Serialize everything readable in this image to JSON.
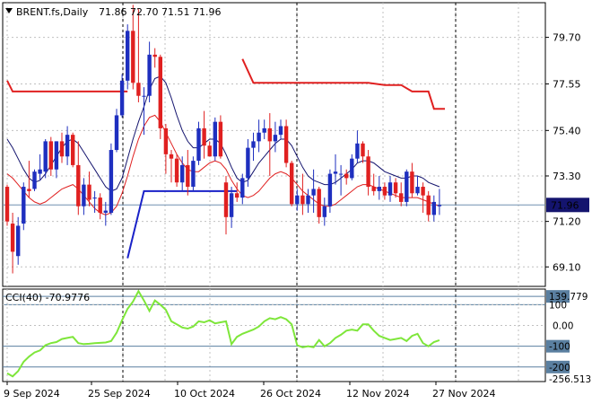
{
  "header": {
    "symbol": "BRENT.fs,Daily",
    "ohlc": "71.86 72.70 71.51 71.96"
  },
  "colors": {
    "up": "#1e2fbf",
    "down": "#e02020",
    "ma_dark": "#14146e",
    "ma_red": "#e02020",
    "sar_red": "#e02020",
    "sar_blue": "#1a22c8",
    "cci": "#7ee63a",
    "level": "#5a7fa0",
    "price_box": "#14146e"
  },
  "chart_data": [
    {
      "type": "candlestick",
      "title": "BRENT.fs,Daily",
      "ylim": [
        68.2,
        81.3
      ],
      "y_ticks": [
        "79.70",
        "77.55",
        "75.40",
        "73.30",
        "71.20",
        "69.10"
      ],
      "current_price": "71.96",
      "x_tick_labels": [
        "9 Sep 2024",
        "25 Sep 2024",
        "10 Oct 2024",
        "26 Oct 2024",
        "12 Nov 2024",
        "27 Nov 2024"
      ],
      "candles": [
        [
          72.8,
          72.9,
          71.0,
          71.2
        ],
        [
          71.1,
          71.6,
          68.8,
          69.8
        ],
        [
          69.6,
          71.4,
          69.2,
          71.0
        ],
        [
          71.1,
          73.0,
          70.8,
          72.8
        ],
        [
          72.7,
          74.0,
          72.3,
          72.6
        ],
        [
          72.7,
          73.6,
          72.6,
          73.5
        ],
        [
          73.4,
          74.3,
          73.1,
          73.6
        ],
        [
          73.5,
          75.0,
          73.2,
          74.9
        ],
        [
          74.9,
          75.1,
          73.3,
          73.6
        ],
        [
          73.6,
          74.9,
          73.2,
          74.9
        ],
        [
          74.9,
          75.3,
          73.9,
          74.2
        ],
        [
          74.2,
          75.6,
          73.8,
          75.2
        ],
        [
          75.2,
          75.3,
          73.7,
          73.8
        ],
        [
          73.8,
          74.9,
          71.5,
          71.9
        ],
        [
          71.9,
          73.2,
          71.5,
          72.9
        ],
        [
          72.9,
          73.5,
          71.9,
          72.2
        ],
        [
          72.3,
          72.6,
          71.6,
          72.3
        ],
        [
          72.3,
          72.5,
          71.3,
          71.6
        ],
        [
          71.6,
          72.1,
          71.0,
          71.7
        ],
        [
          71.6,
          74.8,
          71.5,
          74.5
        ],
        [
          74.5,
          76.4,
          74.4,
          76.1
        ],
        [
          76.1,
          78.0,
          76.0,
          77.7
        ],
        [
          77.7,
          80.3,
          77.3,
          80.0
        ],
        [
          80.0,
          81.2,
          77.3,
          77.6
        ],
        [
          77.6,
          81.0,
          76.7,
          77.0
        ],
        [
          77.0,
          77.4,
          75.2,
          77.0
        ],
        [
          77.0,
          79.5,
          76.7,
          78.9
        ],
        [
          78.9,
          79.2,
          78.3,
          78.8
        ],
        [
          78.8,
          78.9,
          75.0,
          75.5
        ],
        [
          75.5,
          75.7,
          73.4,
          74.3
        ],
        [
          74.3,
          74.5,
          73.0,
          74.1
        ],
        [
          74.1,
          74.3,
          72.8,
          73.0
        ],
        [
          73.0,
          74.2,
          72.6,
          73.8
        ],
        [
          73.8,
          74.5,
          72.4,
          72.8
        ],
        [
          72.8,
          74.2,
          72.6,
          74.0
        ],
        [
          74.0,
          75.8,
          73.8,
          75.5
        ],
        [
          75.5,
          76.3,
          74.1,
          74.7
        ],
        [
          74.7,
          74.9,
          74.2,
          74.2
        ],
        [
          74.2,
          76.0,
          74.0,
          75.8
        ],
        [
          75.8,
          76.1,
          74.1,
          74.2
        ],
        [
          73.0,
          73.3,
          70.6,
          71.4
        ],
        [
          71.4,
          72.8,
          70.9,
          72.5
        ],
        [
          72.5,
          73.0,
          72.1,
          72.3
        ],
        [
          72.3,
          73.4,
          72.0,
          73.2
        ],
        [
          73.2,
          75.0,
          72.8,
          74.6
        ],
        [
          74.6,
          75.3,
          74.0,
          74.9
        ],
        [
          74.9,
          75.9,
          74.4,
          75.3
        ],
        [
          75.3,
          75.9,
          75.0,
          75.5
        ],
        [
          75.5,
          76.2,
          73.3,
          74.9
        ],
        [
          74.9,
          75.8,
          74.4,
          75.2
        ],
        [
          75.2,
          75.9,
          75.0,
          75.6
        ],
        [
          75.6,
          75.9,
          73.7,
          73.9
        ],
        [
          73.9,
          74.0,
          71.9,
          72.0
        ],
        [
          72.0,
          72.7,
          71.7,
          72.4
        ],
        [
          72.4,
          73.4,
          71.5,
          72.0
        ],
        [
          72.0,
          72.7,
          71.6,
          72.4
        ],
        [
          72.4,
          73.6,
          71.6,
          72.7
        ],
        [
          72.7,
          72.8,
          71.1,
          71.4
        ],
        [
          71.4,
          72.3,
          71.0,
          71.9
        ],
        [
          71.9,
          73.6,
          71.6,
          73.4
        ],
        [
          73.4,
          74.3,
          72.9,
          73.5
        ],
        [
          73.4,
          73.8,
          72.4,
          73.4
        ],
        [
          73.4,
          73.6,
          72.9,
          73.2
        ],
        [
          73.2,
          74.3,
          73.1,
          74.1
        ],
        [
          74.1,
          75.4,
          73.9,
          74.8
        ],
        [
          74.8,
          74.9,
          73.9,
          74.2
        ],
        [
          74.2,
          74.5,
          72.4,
          72.8
        ],
        [
          72.8,
          73.4,
          72.4,
          72.6
        ],
        [
          72.6,
          73.3,
          72.2,
          72.8
        ],
        [
          72.8,
          73.0,
          72.2,
          72.4
        ],
        [
          72.4,
          73.3,
          72.1,
          73.0
        ],
        [
          73.0,
          73.2,
          72.3,
          72.5
        ],
        [
          72.5,
          73.0,
          71.9,
          72.1
        ],
        [
          72.1,
          73.6,
          71.9,
          73.5
        ],
        [
          73.5,
          73.9,
          72.3,
          72.5
        ],
        [
          72.5,
          73.3,
          72.4,
          72.8
        ],
        [
          72.8,
          73.0,
          71.6,
          72.4
        ],
        [
          72.4,
          72.6,
          71.2,
          71.5
        ],
        [
          71.5,
          72.4,
          71.2,
          72.1
        ],
        [
          71.9,
          72.7,
          71.5,
          71.96
        ]
      ],
      "series": [
        {
          "role": "moving-average-dark",
          "values": [
            75.0,
            74.6,
            74.1,
            73.6,
            73.2,
            73.0,
            73.1,
            73.4,
            73.8,
            74.2,
            74.6,
            74.9,
            75.0,
            74.8,
            74.4,
            74.0,
            73.6,
            73.2,
            72.8,
            72.6,
            72.7,
            73.2,
            74.1,
            75.0,
            75.8,
            76.5,
            77.3,
            77.8,
            77.9,
            77.6,
            76.9,
            76.1,
            75.4,
            74.9,
            74.6,
            74.6,
            74.8,
            75.0,
            75.0,
            74.8,
            74.3,
            73.7,
            73.2,
            73.0,
            73.1,
            73.5,
            73.9,
            74.2,
            74.5,
            74.8,
            75.0,
            75.0,
            74.7,
            74.2,
            73.7,
            73.3,
            73.1,
            73.0,
            72.9,
            72.9,
            73.0,
            73.2,
            73.4,
            73.6,
            73.9,
            74.0,
            74.0,
            73.9,
            73.7,
            73.5,
            73.4,
            73.3,
            73.2,
            73.2,
            73.3,
            73.3,
            73.2,
            73.0,
            72.9,
            72.8
          ]
        },
        {
          "role": "moving-average-red",
          "values": [
            73.4,
            73.2,
            72.9,
            72.6,
            72.3,
            72.1,
            72.0,
            72.1,
            72.3,
            72.5,
            72.7,
            72.8,
            72.9,
            72.7,
            72.4,
            72.1,
            71.8,
            71.6,
            71.5,
            71.6,
            71.9,
            72.5,
            73.3,
            74.2,
            75.0,
            75.6,
            76.0,
            76.1,
            75.8,
            75.3,
            74.8,
            74.3,
            73.9,
            73.6,
            73.5,
            73.5,
            73.7,
            73.9,
            74.0,
            73.9,
            73.6,
            73.1,
            72.7,
            72.4,
            72.3,
            72.4,
            72.6,
            72.9,
            73.2,
            73.4,
            73.5,
            73.4,
            73.2,
            72.9,
            72.6,
            72.4,
            72.2,
            72.0,
            71.9,
            71.9,
            72.0,
            72.2,
            72.4,
            72.6,
            72.8,
            72.9,
            72.9,
            72.8,
            72.7,
            72.6,
            72.5,
            72.4,
            72.3,
            72.3,
            72.3,
            72.3,
            72.2,
            72.1,
            72.0,
            71.9
          ]
        }
      ],
      "sar_segments": [
        {
          "color": "red",
          "points": [
            [
              0,
              77.7
            ],
            [
              1,
              77.2
            ],
            [
              22,
              77.2
            ]
          ]
        },
        {
          "color": "blue",
          "points": [
            [
              22,
              69.5
            ],
            [
              25,
              72.6
            ],
            [
              42,
              72.6
            ]
          ]
        },
        {
          "color": "red",
          "points": [
            [
              43,
              78.7
            ],
            [
              45,
              77.6
            ],
            [
              66,
              77.6
            ],
            [
              69,
              77.5
            ],
            [
              72,
              77.5
            ],
            [
              74,
              77.2
            ],
            [
              77,
              77.2
            ],
            [
              78,
              76.4
            ],
            [
              80,
              76.4
            ]
          ]
        }
      ]
    },
    {
      "type": "line",
      "title": "CCI(40) -70.9776",
      "ylim": [
        -270,
        175
      ],
      "y_ticks": [
        "0.00"
      ],
      "levels": [
        {
          "label": "139.779",
          "value": 139.779
        },
        {
          "label": "100",
          "value": 100
        },
        {
          "label": "-100",
          "value": -100
        },
        {
          "label": "-200",
          "value": -200
        },
        {
          "label": "-256.513",
          "value": -256.513
        }
      ],
      "values": [
        -230,
        -245,
        -220,
        -175,
        -150,
        -130,
        -120,
        -95,
        -85,
        -80,
        -65,
        -60,
        -55,
        -85,
        -90,
        -88,
        -85,
        -84,
        -82,
        -75,
        -35,
        25,
        80,
        115,
        165,
        120,
        70,
        120,
        100,
        75,
        20,
        5,
        -10,
        -15,
        -5,
        20,
        15,
        25,
        10,
        15,
        20,
        -90,
        -55,
        -40,
        -30,
        -20,
        -5,
        20,
        35,
        30,
        40,
        30,
        5,
        -95,
        -105,
        -100,
        -105,
        -70,
        -100,
        -85,
        -60,
        -45,
        -25,
        -20,
        -25,
        5,
        5,
        -25,
        -50,
        -60,
        -70,
        -65,
        -60,
        -75,
        -50,
        -40,
        -85,
        -100,
        -80,
        -71
      ]
    }
  ]
}
